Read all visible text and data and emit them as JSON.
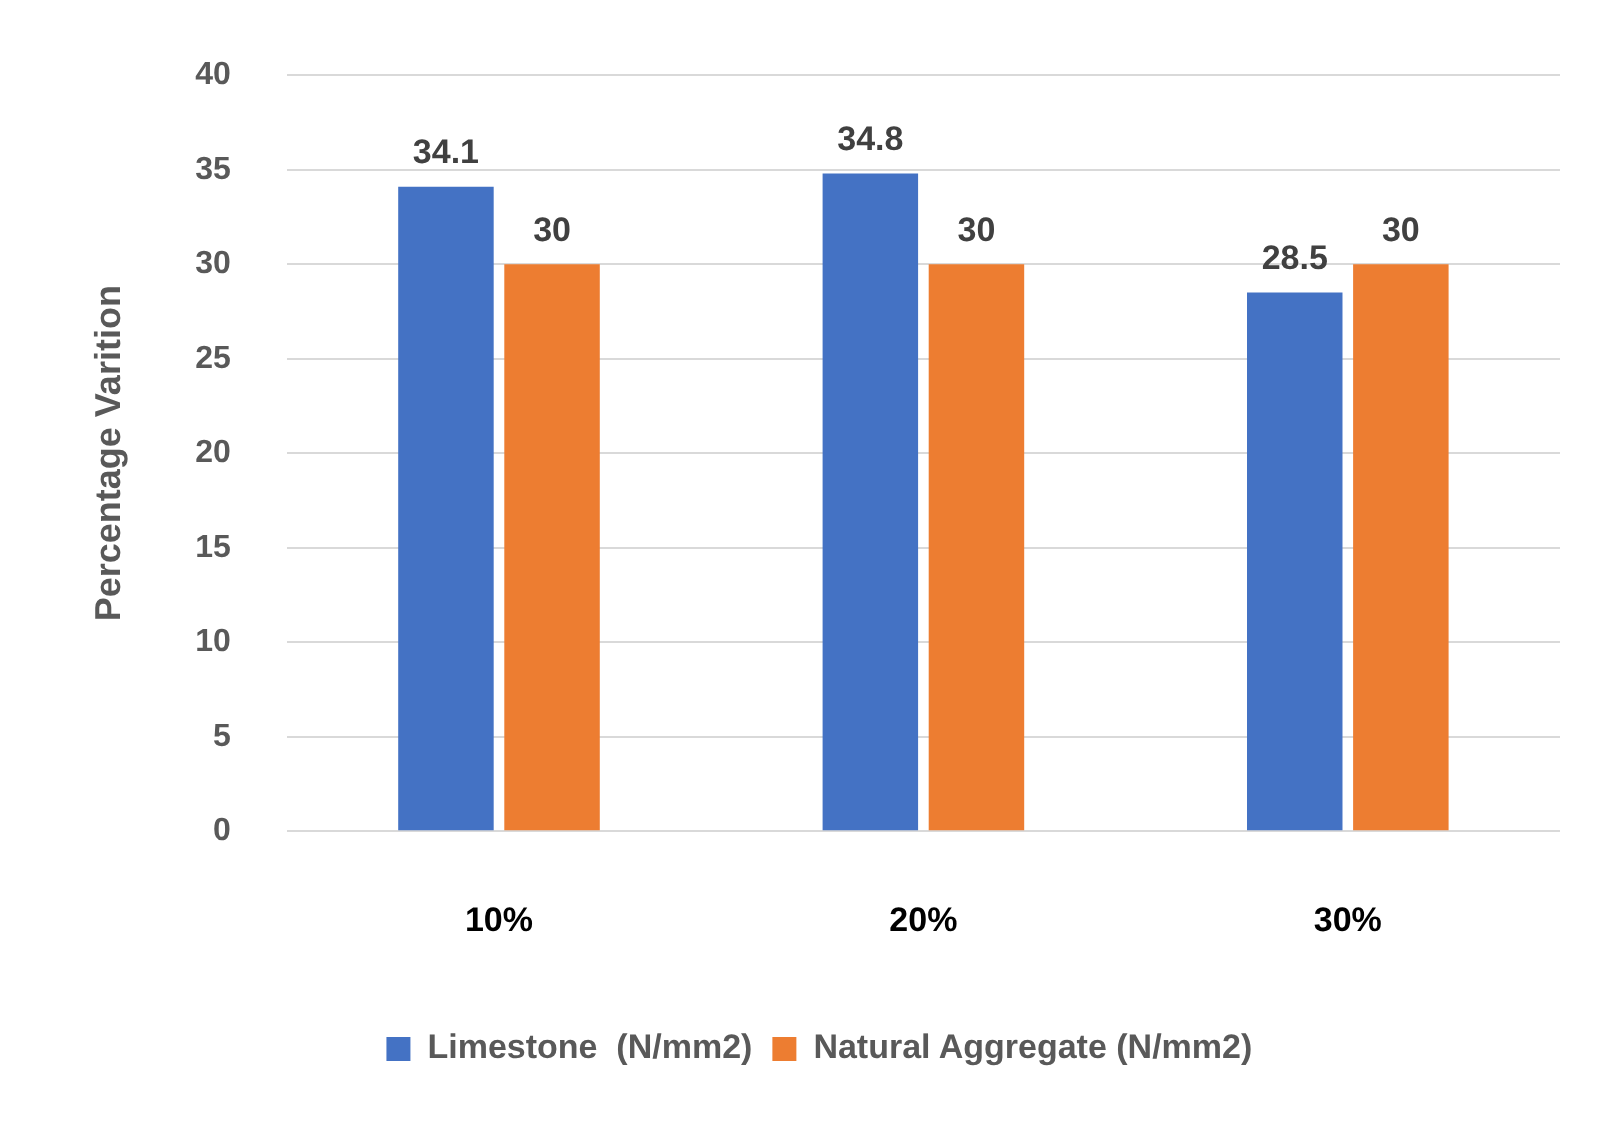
{
  "chart_data": {
    "type": "bar",
    "ylabel": "Percentage Varition",
    "categories": [
      "10%",
      "20%",
      "30%"
    ],
    "series": [
      {
        "name": "Limestone  (N/mm2)",
        "color": "#4472c4",
        "values": [
          34.1,
          34.8,
          28.5
        ]
      },
      {
        "name": "Natural Aggregate (N/mm2)",
        "color": "#ed7d31",
        "values": [
          30,
          30,
          30
        ]
      }
    ],
    "ylim": [
      0,
      40
    ],
    "yticks": [
      0,
      5,
      10,
      15,
      20,
      25,
      30,
      35,
      40
    ],
    "grid": "y",
    "legend": "bottom",
    "data_labels": true
  }
}
